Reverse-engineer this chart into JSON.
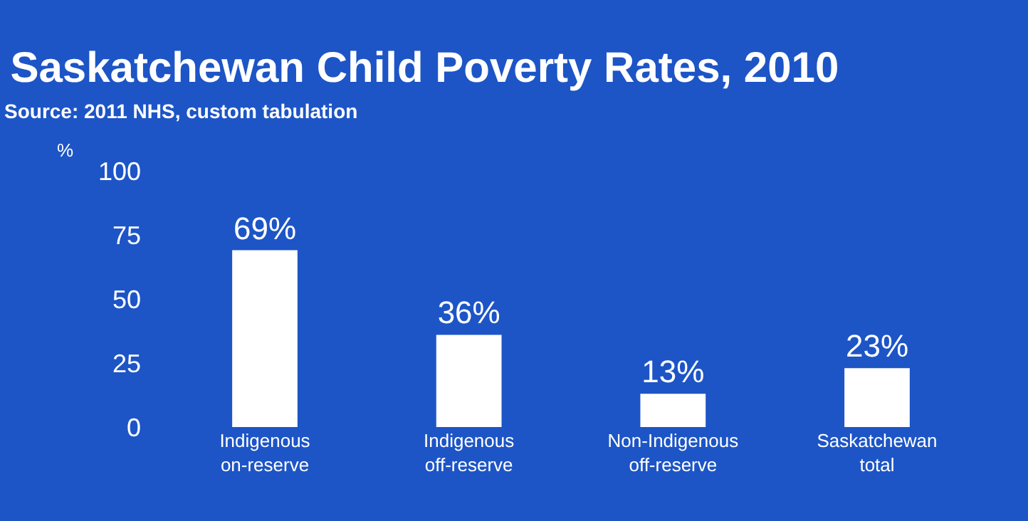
{
  "chart_data": {
    "type": "bar",
    "title": "Saskatchewan Child Poverty Rates, 2010",
    "subtitle": "Source: 2011 NHS, custom tabulation",
    "ylabel": "%",
    "categories": [
      "Indigenous\non-reserve",
      "Indigenous\noff-reserve",
      "Non-Indigenous\noff-reserve",
      "Saskatchewan\ntotal"
    ],
    "values": [
      69,
      36,
      13,
      23
    ],
    "color": "#ffffff",
    "value_labels": [
      "69%",
      "36%",
      "13%",
      "23%"
    ],
    "ylim": [
      0,
      100
    ],
    "yticks": [
      0,
      25,
      50,
      75,
      100
    ],
    "grid": false,
    "legend": false
  }
}
